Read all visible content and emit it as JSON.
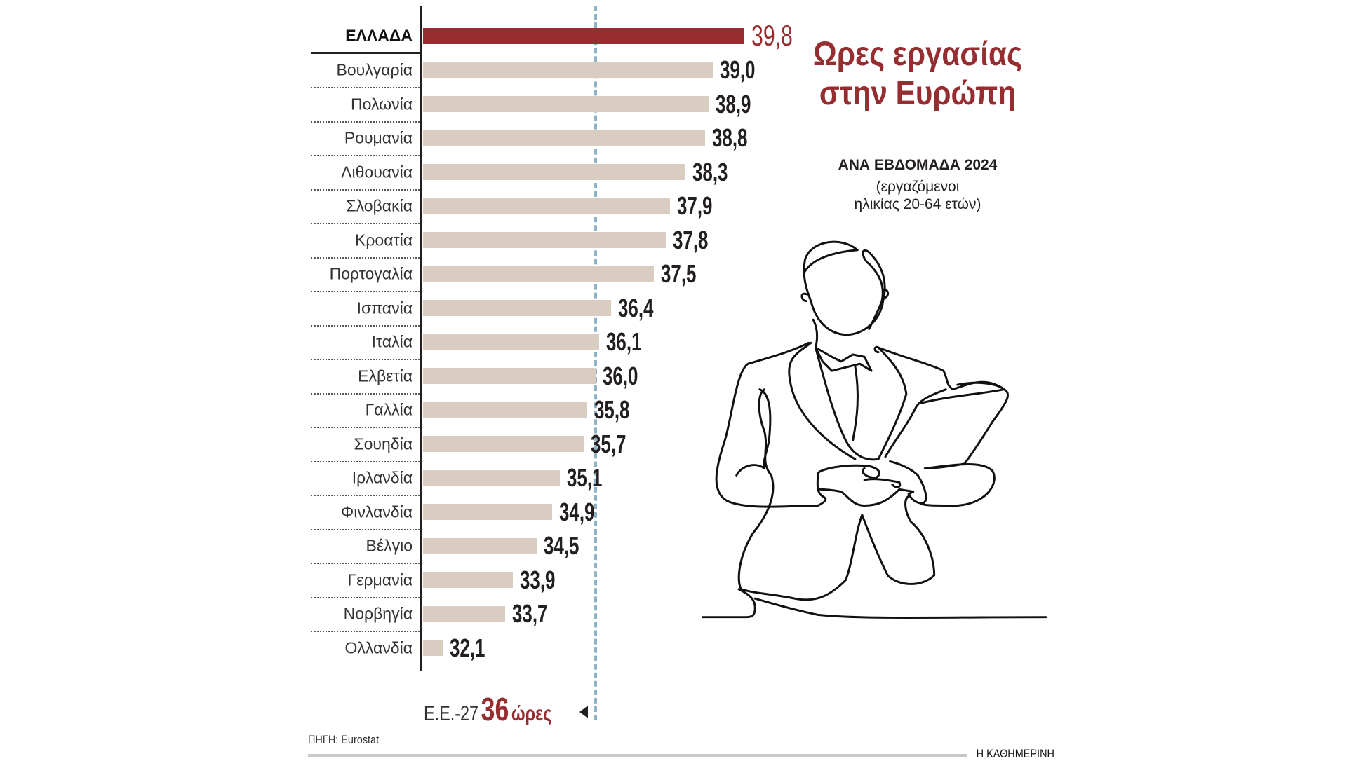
{
  "chart_data": {
    "type": "bar",
    "orientation": "horizontal",
    "title": "Ωρες εργασίας στην Ευρώπη",
    "subtitle": "ΑΝΑ ΕΒΔΟΜΑΔΑ 2024",
    "note_line1": "(εργαζόμενοι",
    "note_line2": "ηλικίας 20-64 ετών)",
    "categories": [
      "ΕΛΛΑΔΑ",
      "Βουλγαρία",
      "Πολωνία",
      "Ρουμανία",
      "Λιθουανία",
      "Σλοβακία",
      "Κροατία",
      "Πορτογαλία",
      "Ισπανία",
      "Ιταλία",
      "Ελβετία",
      "Γαλλία",
      "Σουηδία",
      "Ιρλανδία",
      "Φινλανδία",
      "Βέλγιο",
      "Γερμανία",
      "Νορβηγία",
      "Ολλανδία"
    ],
    "values": [
      39.8,
      39.0,
      38.9,
      38.8,
      38.3,
      37.9,
      37.8,
      37.5,
      36.4,
      36.1,
      36.0,
      35.8,
      35.7,
      35.1,
      34.9,
      34.5,
      33.9,
      33.7,
      32.1
    ],
    "value_labels": [
      "39,8",
      "39,0",
      "38,9",
      "38,8",
      "38,3",
      "37,9",
      "37,8",
      "37,5",
      "36,4",
      "36,1",
      "36,0",
      "35,8",
      "35,7",
      "35,1",
      "34,9",
      "34,5",
      "33,9",
      "33,7",
      "32,1"
    ],
    "highlight_index": 0,
    "reference_line": {
      "value": 36,
      "label_prefix": "Ε.Ε.-27",
      "label_value": "36",
      "label_unit": "ώρες"
    },
    "xlim": [
      31.6,
      40.5
    ],
    "colors": {
      "highlight": "#962d31",
      "bar": "#d9ccc0",
      "reference": "#8fb3c6"
    }
  },
  "footer": {
    "source": "ΠΗΓΗ: Eurostat",
    "brand": "Η ΚΑΘΗΜΕΡΙΝΗ"
  }
}
